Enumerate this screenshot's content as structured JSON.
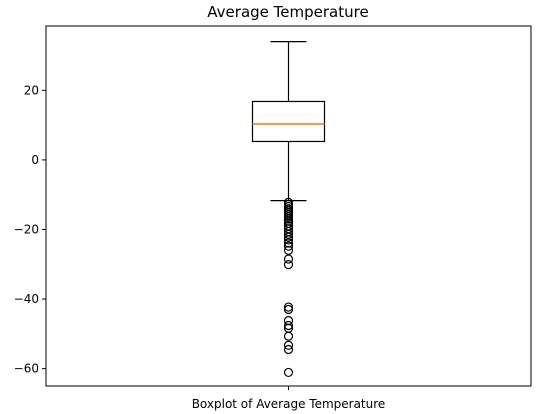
{
  "chart_data": {
    "type": "boxplot",
    "title": "Average Temperature",
    "xlabel": "",
    "ylabel": "",
    "categories": [
      "Boxplot of Average Temperature"
    ],
    "ylim": [
      -65,
      38.5
    ],
    "yticks": [
      20,
      0,
      -20,
      -40,
      -60
    ],
    "ytick_labels": [
      "20",
      "0",
      "−20",
      "−40",
      "−60"
    ],
    "grid": false,
    "box": {
      "whisker_high": 34,
      "q3": 16.8,
      "median": 10.3,
      "q1": 5.3,
      "whisker_low": -11.7
    },
    "outliers": [
      -12.2,
      -12.8,
      -13.4,
      -14.0,
      -14.6,
      -15.2,
      -15.8,
      -16.4,
      -17.0,
      -17.6,
      -18.2,
      -19.0,
      -19.8,
      -20.6,
      -21.4,
      -22.2,
      -23.0,
      -23.9,
      -24.8,
      -26.0,
      -28.5,
      -30.1,
      -42.3,
      -43.0,
      -46.2,
      -47.6,
      -48.4,
      -50.7,
      -53.3,
      -54.5,
      -61.1
    ],
    "colors": {
      "box": "#000000",
      "median": "#ff7f0e",
      "outlier_edge": "#000000"
    }
  }
}
